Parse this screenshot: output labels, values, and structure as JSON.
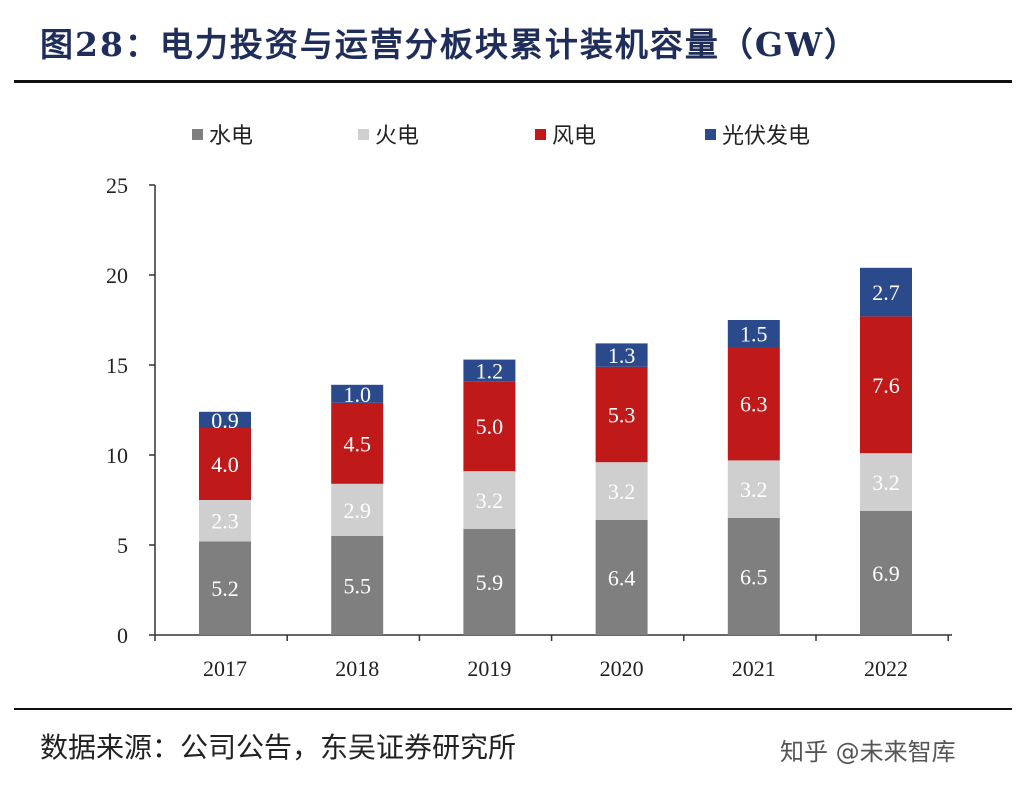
{
  "title": "图28：电力投资与运营分板块累计装机容量（GW）",
  "source": "数据来源：公司公告，东吴证券研究所",
  "watermark": "知乎 @未来智库",
  "chart_data": {
    "type": "bar",
    "stacked": true,
    "title": "",
    "xlabel": "",
    "ylabel": "",
    "ylim": [
      0,
      25
    ],
    "yticks": [
      0,
      5,
      10,
      15,
      20,
      25
    ],
    "grid": false,
    "legend_position": "top",
    "categories": [
      "2017",
      "2018",
      "2019",
      "2020",
      "2021",
      "2022"
    ],
    "series": [
      {
        "name": "水电",
        "color": "#7f7f7f",
        "values": [
          5.2,
          5.5,
          5.9,
          6.4,
          6.5,
          6.9
        ]
      },
      {
        "name": "火电",
        "color": "#cfcfcf",
        "values": [
          2.3,
          2.9,
          3.2,
          3.2,
          3.2,
          3.2
        ]
      },
      {
        "name": "风电",
        "color": "#c0191a",
        "values": [
          4.0,
          4.5,
          5.0,
          5.3,
          6.3,
          7.6
        ]
      },
      {
        "name": "光伏发电",
        "color": "#2a4a8c",
        "values": [
          0.9,
          1.0,
          1.2,
          1.3,
          1.5,
          2.7
        ]
      }
    ]
  }
}
